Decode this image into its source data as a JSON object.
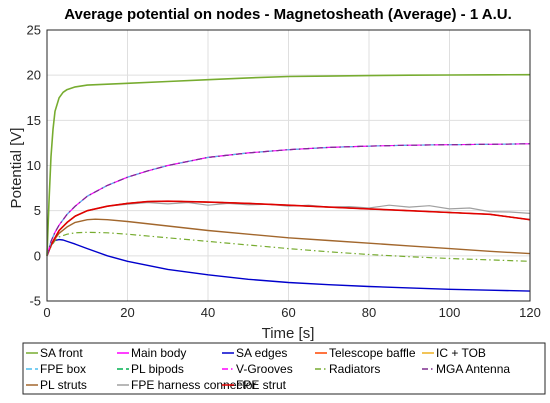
{
  "chart_data": {
    "type": "line",
    "title": "Average potential on nodes - Magnetosheath (Average) - 1 A.U.",
    "xlabel": "Time [s]",
    "ylabel": "Potential [V]",
    "xlim": [
      0,
      120
    ],
    "ylim": [
      -5,
      25
    ],
    "xticks": [
      0,
      20,
      40,
      60,
      80,
      100,
      120
    ],
    "yticks": [
      -5,
      0,
      5,
      10,
      15,
      20,
      25
    ],
    "grid": true,
    "legend_position": "bottom",
    "series": [
      {
        "name": "SA front",
        "color": "#77ac30",
        "dash": "solid",
        "width": 1.6,
        "x": [
          0,
          0.5,
          1,
          1.5,
          2,
          3,
          4,
          5,
          7,
          10,
          15,
          20,
          30,
          40,
          50,
          60,
          70,
          80,
          90,
          100,
          110,
          120
        ],
        "y": [
          0,
          6,
          11,
          14,
          16,
          17.5,
          18.1,
          18.4,
          18.7,
          18.9,
          19.0,
          19.1,
          19.3,
          19.5,
          19.7,
          19.85,
          19.9,
          19.95,
          20.0,
          20.02,
          20.04,
          20.05
        ]
      },
      {
        "name": "Main body",
        "color": "#ff00ff",
        "dash": "solid",
        "width": 1.2,
        "x": [
          0,
          1,
          2,
          3,
          5,
          7,
          10,
          15,
          20,
          25,
          30,
          40,
          50,
          60,
          70,
          80,
          90,
          100,
          110,
          120
        ],
        "y": [
          0,
          1.6,
          2.6,
          3.4,
          4.6,
          5.5,
          6.6,
          7.8,
          8.7,
          9.4,
          10.0,
          10.9,
          11.4,
          11.75,
          12.0,
          12.15,
          12.25,
          12.3,
          12.35,
          12.4
        ]
      },
      {
        "name": "SA edges",
        "color": "#0000cc",
        "dash": "solid",
        "width": 1.4,
        "x": [
          0,
          1,
          2,
          3,
          4,
          5,
          7,
          10,
          15,
          20,
          30,
          40,
          50,
          60,
          70,
          80,
          90,
          100,
          110,
          120
        ],
        "y": [
          0,
          1.2,
          1.7,
          1.8,
          1.75,
          1.6,
          1.3,
          0.8,
          0.0,
          -0.6,
          -1.5,
          -2.1,
          -2.6,
          -2.95,
          -3.2,
          -3.4,
          -3.55,
          -3.7,
          -3.8,
          -3.9
        ]
      },
      {
        "name": "Telescope baffle",
        "color": "#ff4500",
        "dash": "solid",
        "width": 1.2,
        "x": [
          0,
          1,
          2,
          3,
          5,
          7,
          10,
          15,
          20,
          25,
          30,
          40,
          50,
          60,
          70,
          80,
          90,
          100,
          110,
          120
        ],
        "y": [
          0,
          1.2,
          2.0,
          2.8,
          3.7,
          4.4,
          5.0,
          5.5,
          5.8,
          6.0,
          6.05,
          5.95,
          5.8,
          5.6,
          5.4,
          5.2,
          5.0,
          4.8,
          4.6,
          4.0
        ]
      },
      {
        "name": "IC + TOB",
        "color": "#edb120",
        "dash": "solid",
        "width": 1.2,
        "x": [
          0,
          1,
          2,
          3,
          5,
          7,
          10,
          15,
          20,
          25,
          30,
          40,
          50,
          60,
          70,
          80,
          90,
          100,
          110,
          120
        ],
        "y": [
          0,
          1.2,
          2.0,
          2.8,
          3.7,
          4.4,
          5.0,
          5.5,
          5.8,
          6.0,
          6.05,
          5.95,
          5.8,
          5.6,
          5.4,
          5.2,
          5.0,
          4.8,
          4.6,
          4.0
        ]
      },
      {
        "name": "FPE box",
        "color": "#4dbeee",
        "dash": "dash",
        "width": 1.2,
        "x": [
          0,
          1,
          2,
          3,
          5,
          7,
          10,
          15,
          20,
          25,
          30,
          40,
          50,
          60,
          70,
          80,
          90,
          100,
          110,
          120
        ],
        "y": [
          0,
          1.6,
          2.6,
          3.4,
          4.6,
          5.5,
          6.6,
          7.8,
          8.7,
          9.4,
          10.0,
          10.9,
          11.4,
          11.75,
          12.0,
          12.15,
          12.25,
          12.3,
          12.35,
          12.4
        ]
      },
      {
        "name": "PL bipods",
        "color": "#00b050",
        "dash": "dash",
        "width": 1.2,
        "x": [
          0,
          1,
          2,
          3,
          5,
          7,
          10,
          15,
          20,
          25,
          30,
          40,
          50,
          60,
          70,
          80,
          90,
          100,
          110,
          120
        ],
        "y": [
          0,
          1.2,
          2.0,
          2.8,
          3.7,
          4.4,
          5.0,
          5.5,
          5.8,
          6.0,
          6.05,
          5.95,
          5.8,
          5.6,
          5.4,
          5.2,
          5.0,
          4.8,
          4.6,
          4.0
        ]
      },
      {
        "name": "V-Grooves",
        "color": "#ff00ff",
        "dash": "dashdot",
        "width": 1.2,
        "x": [
          0,
          1,
          2,
          3,
          5,
          7,
          10,
          15,
          20,
          25,
          30,
          40,
          50,
          60,
          70,
          80,
          90,
          100,
          110,
          120
        ],
        "y": [
          0,
          1.6,
          2.6,
          3.4,
          4.6,
          5.5,
          6.6,
          7.8,
          8.7,
          9.4,
          10.0,
          10.9,
          11.4,
          11.75,
          12.0,
          12.15,
          12.25,
          12.3,
          12.35,
          12.4
        ]
      },
      {
        "name": "Radiators",
        "color": "#77ac30",
        "dash": "dashdot",
        "width": 1.2,
        "x": [
          0,
          1,
          2,
          3,
          5,
          7,
          10,
          15,
          20,
          30,
          40,
          50,
          60,
          70,
          80,
          90,
          100,
          110,
          120
        ],
        "y": [
          0,
          1.0,
          1.7,
          2.1,
          2.4,
          2.55,
          2.6,
          2.55,
          2.4,
          2.0,
          1.6,
          1.2,
          0.8,
          0.45,
          0.15,
          -0.1,
          -0.3,
          -0.45,
          -0.6
        ]
      },
      {
        "name": "MGA Antenna",
        "color": "#7e2f8e",
        "dash": "dashdot",
        "width": 1.2,
        "x": [
          0,
          1,
          2,
          3,
          5,
          7,
          10,
          15,
          20,
          25,
          30,
          40,
          50,
          60,
          70,
          80,
          90,
          100,
          110,
          120
        ],
        "y": [
          0,
          1.6,
          2.6,
          3.4,
          4.6,
          5.5,
          6.6,
          7.8,
          8.7,
          9.4,
          10.0,
          10.9,
          11.4,
          11.75,
          12.0,
          12.15,
          12.25,
          12.3,
          12.35,
          12.4
        ]
      },
      {
        "name": "PL struts",
        "color": "#a2672d",
        "dash": "solid",
        "width": 1.4,
        "x": [
          0,
          1,
          2,
          3,
          5,
          7,
          10,
          12,
          15,
          20,
          30,
          40,
          50,
          60,
          70,
          80,
          90,
          100,
          110,
          120
        ],
        "y": [
          0,
          1.1,
          1.9,
          2.5,
          3.2,
          3.7,
          4.0,
          4.05,
          4.0,
          3.8,
          3.3,
          2.8,
          2.4,
          2.0,
          1.7,
          1.4,
          1.1,
          0.8,
          0.5,
          0.25
        ]
      },
      {
        "name": "FPE harness connector",
        "color": "#a0a0a0",
        "dash": "solid",
        "width": 1.2,
        "x": [
          0,
          1,
          2,
          3,
          5,
          7,
          10,
          15,
          20,
          25,
          30,
          35,
          40,
          45,
          50,
          55,
          60,
          65,
          70,
          75,
          80,
          85,
          90,
          95,
          100,
          105,
          110,
          115,
          120
        ],
        "y": [
          0,
          1.2,
          2.0,
          2.8,
          3.7,
          4.4,
          5.0,
          5.5,
          5.7,
          5.9,
          5.75,
          5.9,
          5.6,
          5.8,
          5.65,
          5.7,
          5.5,
          5.6,
          5.4,
          5.45,
          5.3,
          5.6,
          5.4,
          5.55,
          5.2,
          5.3,
          4.9,
          4.85,
          4.7
        ]
      },
      {
        "name": "FPE strut",
        "color": "#e00000",
        "dash": "solid",
        "width": 1.6,
        "x": [
          0,
          1,
          2,
          3,
          5,
          7,
          10,
          15,
          20,
          25,
          30,
          40,
          50,
          60,
          70,
          80,
          90,
          100,
          110,
          120
        ],
        "y": [
          0,
          1.2,
          2.0,
          2.8,
          3.7,
          4.4,
          5.0,
          5.5,
          5.8,
          6.0,
          6.05,
          5.95,
          5.8,
          5.6,
          5.4,
          5.2,
          5.0,
          4.8,
          4.6,
          4.0
        ]
      }
    ]
  }
}
